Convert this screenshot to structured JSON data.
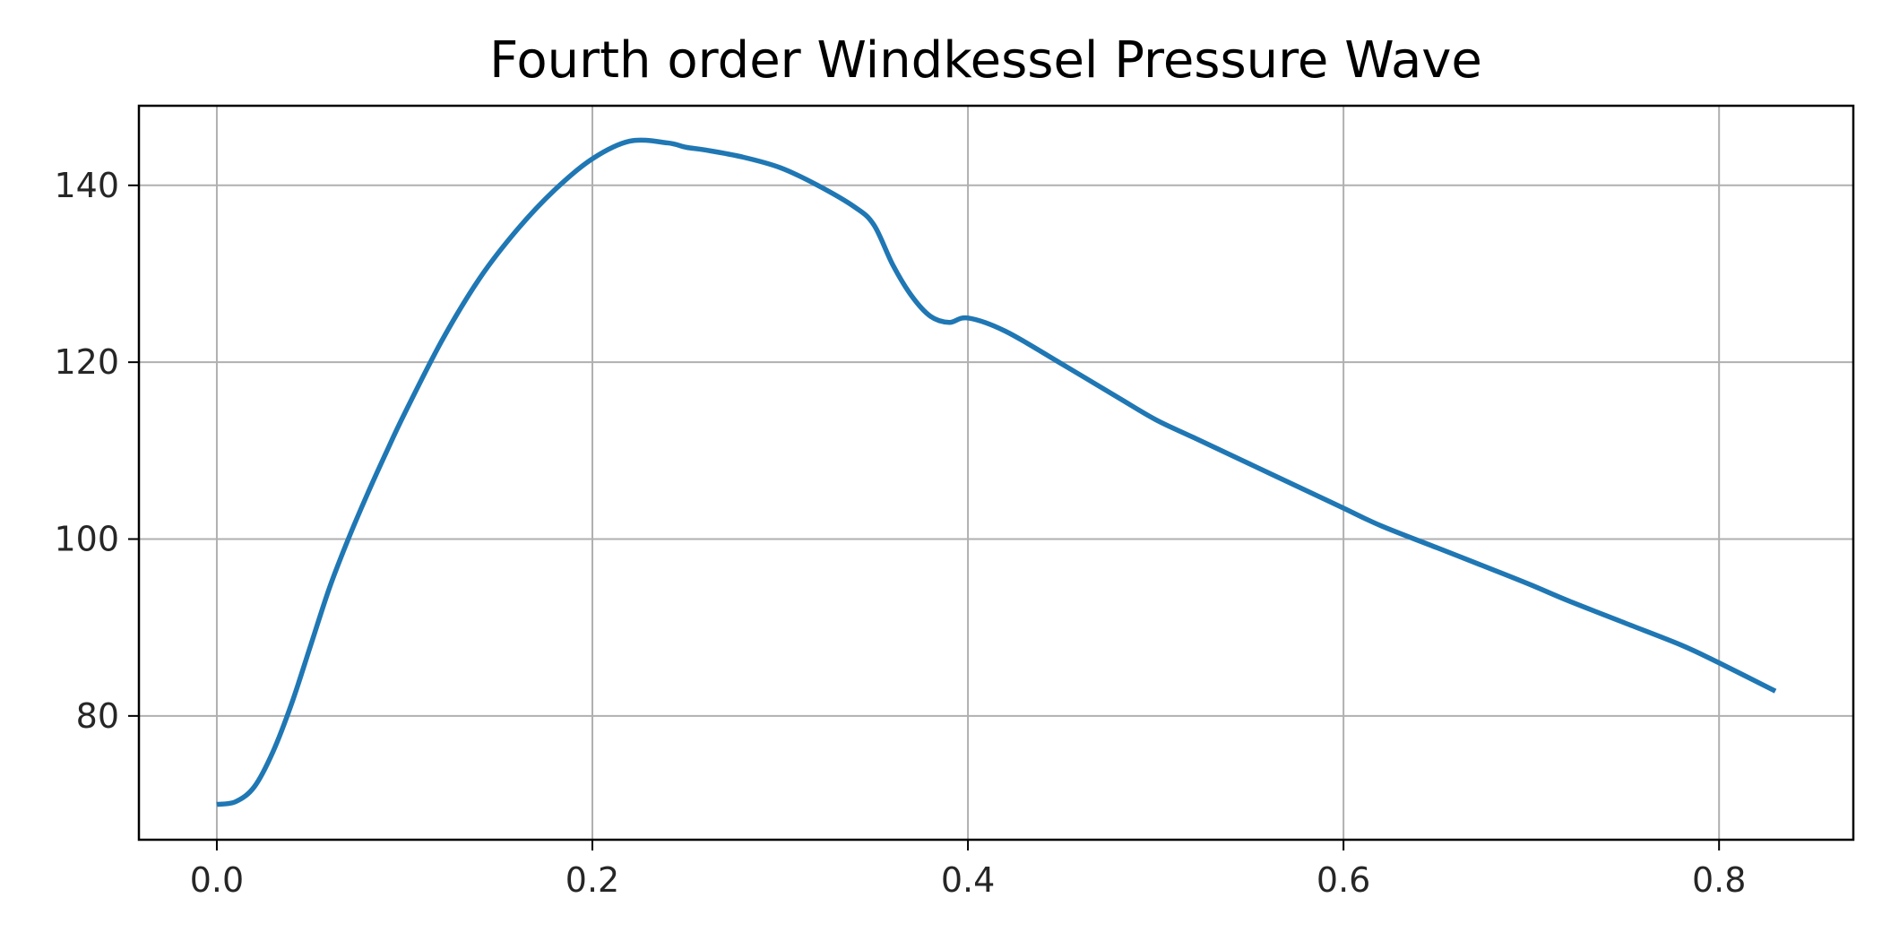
{
  "chart_data": {
    "type": "line",
    "title": "Fourth order Windkessel Pressure Wave",
    "xlabel": "",
    "ylabel": "",
    "xlim": [
      -0.0415,
      0.8715
    ],
    "ylim": [
      66,
      149
    ],
    "x_ticks": [
      0.0,
      0.2,
      0.4,
      0.6,
      0.8
    ],
    "x_tick_labels": [
      "0.0",
      "0.2",
      "0.4",
      "0.6",
      "0.8"
    ],
    "y_ticks": [
      80,
      100,
      120,
      140
    ],
    "y_tick_labels": [
      "80",
      "100",
      "120",
      "140"
    ],
    "grid": true,
    "legend": "none",
    "line_color": "#1f77b4",
    "series": [
      {
        "x": [
          0.0,
          0.01,
          0.02,
          0.03,
          0.04,
          0.05,
          0.06,
          0.07,
          0.08,
          0.09,
          0.1,
          0.12,
          0.14,
          0.16,
          0.18,
          0.2,
          0.22,
          0.24,
          0.25,
          0.26,
          0.28,
          0.3,
          0.32,
          0.34,
          0.35,
          0.36,
          0.37,
          0.38,
          0.39,
          0.4,
          0.42,
          0.45,
          0.48,
          0.5,
          0.52,
          0.55,
          0.58,
          0.6,
          0.62,
          0.65,
          0.68,
          0.7,
          0.72,
          0.75,
          0.78,
          0.8,
          0.83
        ],
        "y": [
          70.0,
          70.3,
          72.0,
          76.0,
          81.5,
          88.0,
          94.5,
          100.0,
          105.0,
          109.7,
          114.2,
          122.5,
          129.5,
          135.0,
          139.5,
          143.0,
          145.0,
          144.8,
          144.3,
          144.0,
          143.2,
          142.0,
          140.0,
          137.5,
          135.5,
          131.0,
          127.5,
          125.2,
          124.5,
          125.0,
          123.5,
          119.8,
          116.0,
          113.5,
          111.5,
          108.5,
          105.5,
          103.5,
          101.5,
          99.0,
          96.5,
          94.8,
          93.0,
          90.5,
          88.0,
          86.0,
          82.8
        ]
      }
    ]
  }
}
